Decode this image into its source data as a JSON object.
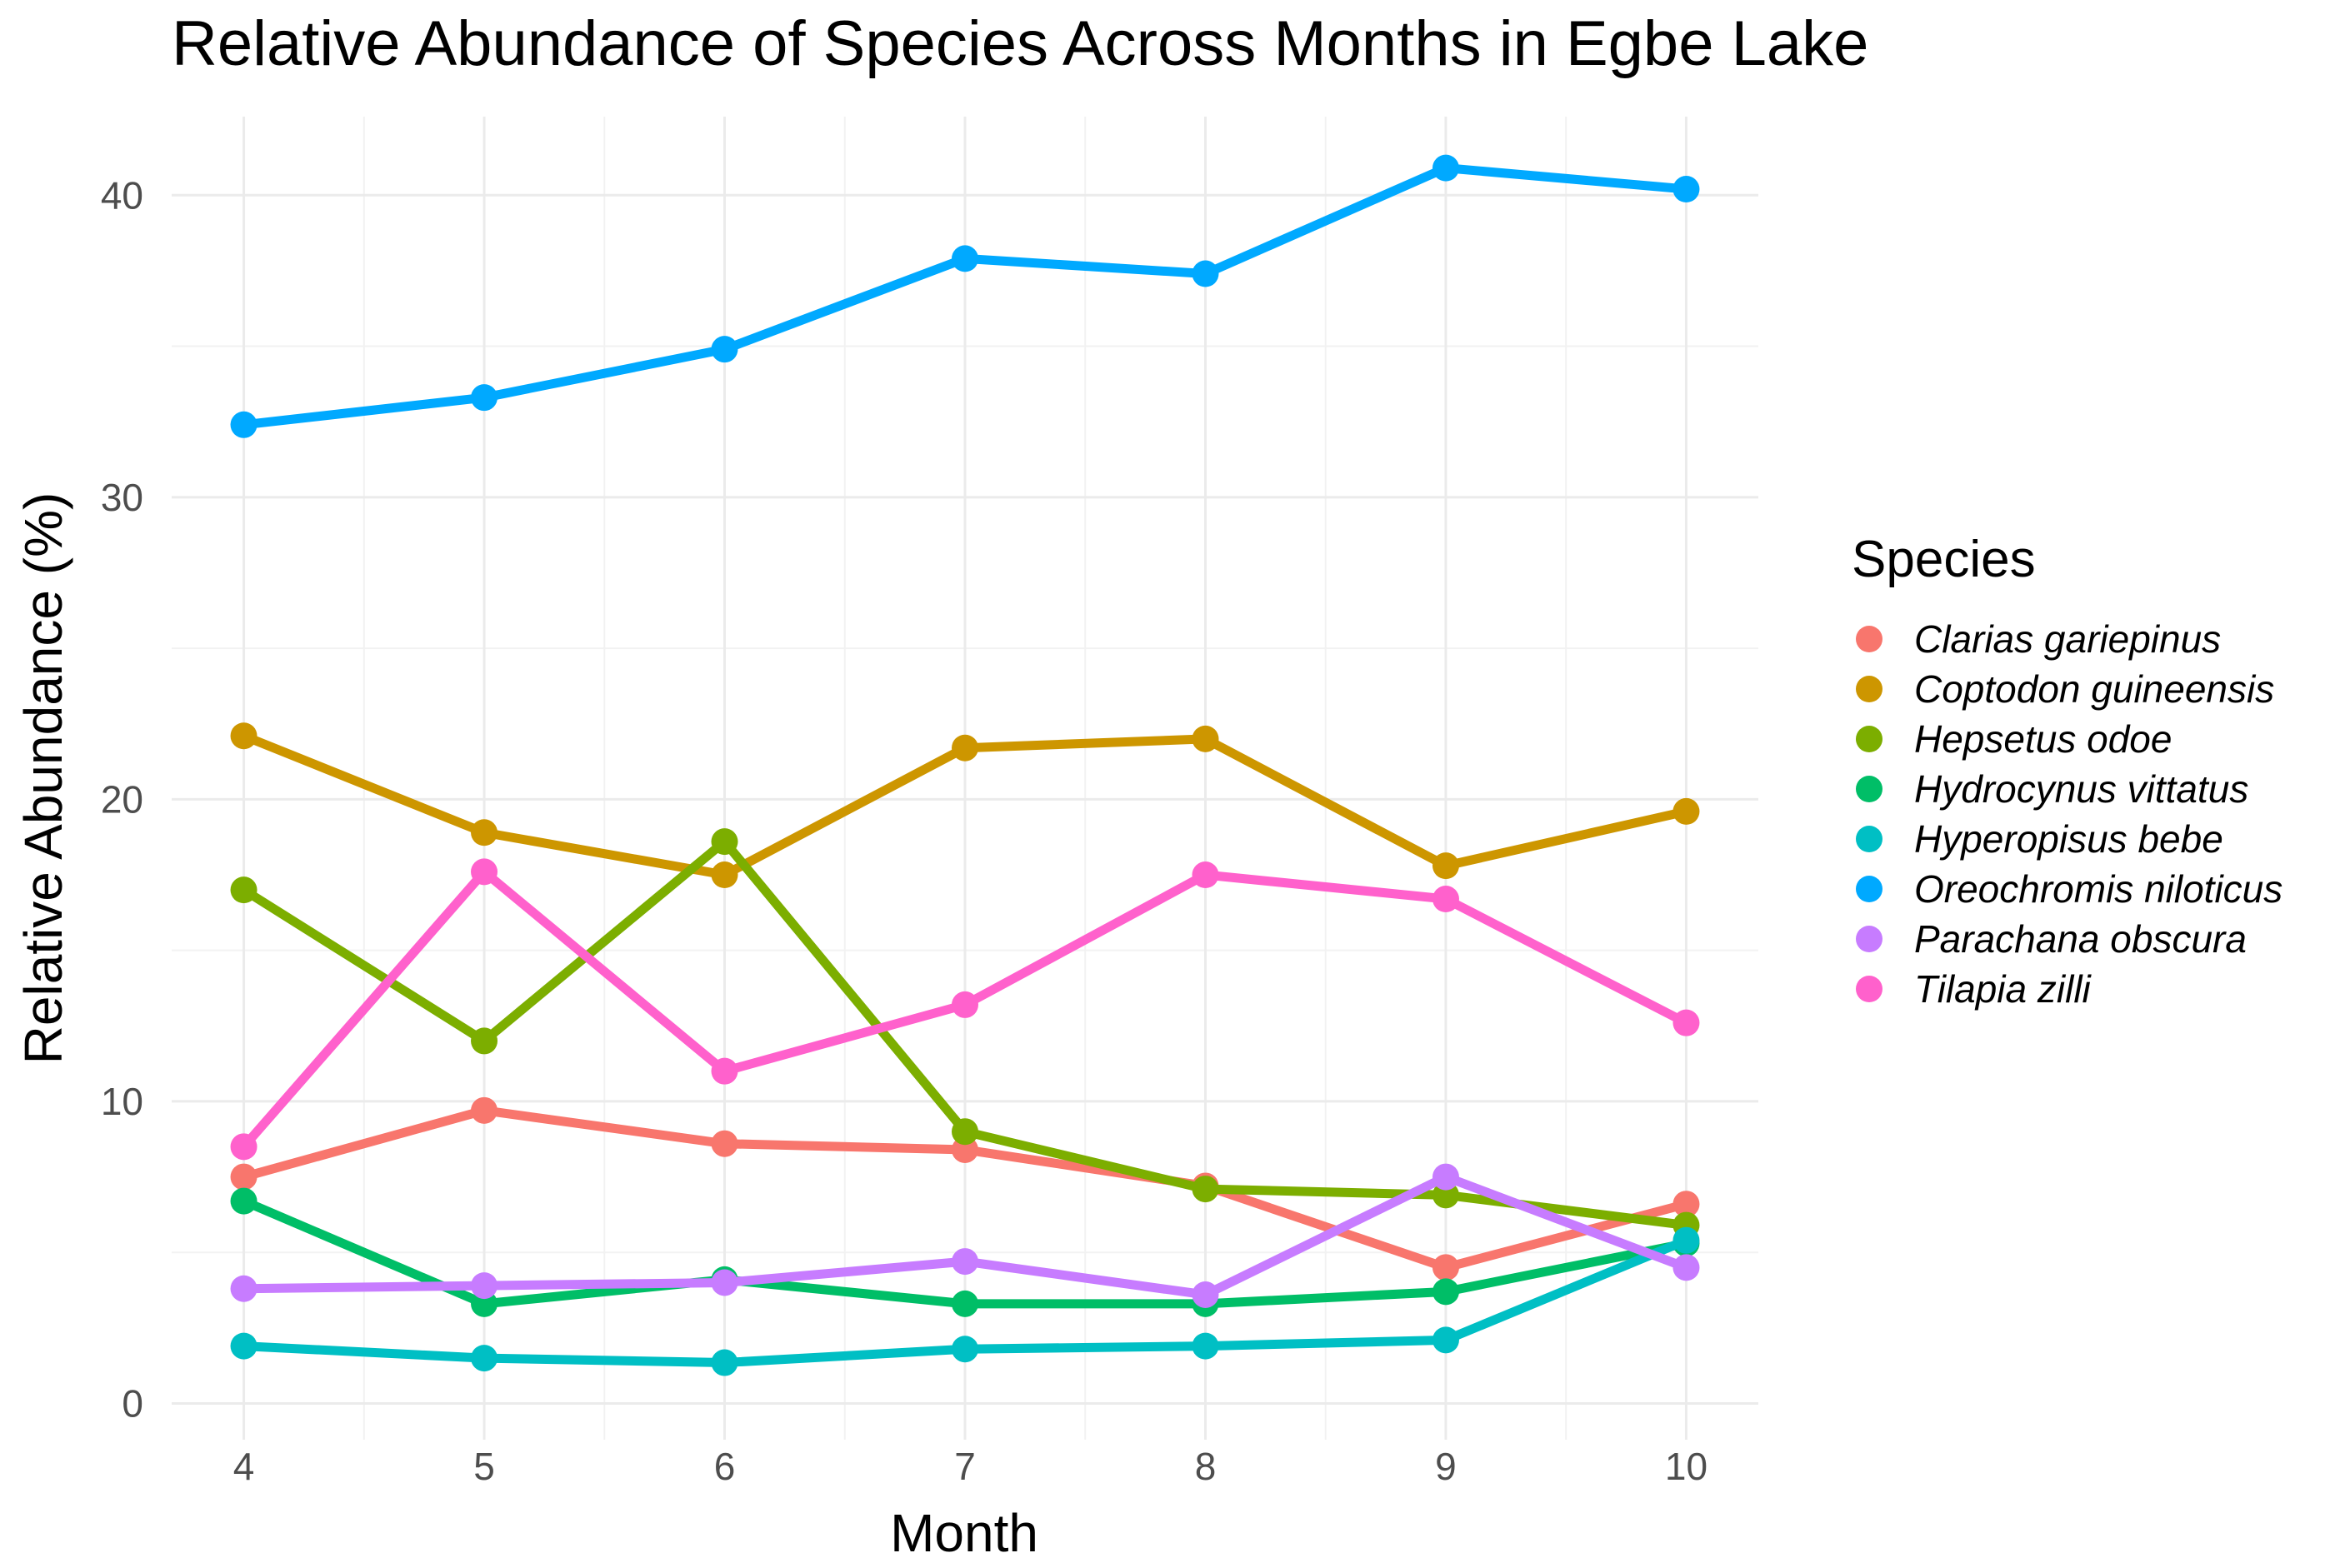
{
  "chart_data": {
    "type": "line",
    "title": "Relative Abundance of Species Across Months in Egbe Lake",
    "xlabel": "Month",
    "ylabel": "Relative Abundance (%)",
    "x": [
      4,
      5,
      6,
      7,
      8,
      9,
      10
    ],
    "xlim": [
      3.7,
      10.3
    ],
    "ylim": [
      -1.2,
      42.6
    ],
    "y_ticks": [
      0,
      10,
      20,
      30,
      40
    ],
    "x_ticks": [
      4,
      5,
      6,
      7,
      8,
      9,
      10
    ],
    "grid": true,
    "legend": {
      "title": "Species",
      "position": "right"
    },
    "series": [
      {
        "name": "Clarias gariepinus",
        "color": "#F8766D",
        "values": [
          7.5,
          9.7,
          8.6,
          8.4,
          7.2,
          4.5,
          6.6
        ]
      },
      {
        "name": "Coptodon guineensis",
        "color": "#CD9600",
        "values": [
          22.1,
          18.9,
          17.5,
          21.7,
          22.0,
          17.8,
          19.6
        ]
      },
      {
        "name": "Hepsetus odoe",
        "color": "#7CAE00",
        "values": [
          17.0,
          12.0,
          18.6,
          9.0,
          7.1,
          6.9,
          5.9
        ]
      },
      {
        "name": "Hydrocynus vittatus",
        "color": "#00BE67",
        "values": [
          6.7,
          3.3,
          4.1,
          3.3,
          3.3,
          3.7,
          5.3
        ]
      },
      {
        "name": "Hyperopisus bebe",
        "color": "#00BFC4",
        "values": [
          1.9,
          1.5,
          1.35,
          1.8,
          1.9,
          2.1,
          5.4
        ]
      },
      {
        "name": "Oreochromis niloticus",
        "color": "#00A9FF",
        "values": [
          32.4,
          33.3,
          34.9,
          37.9,
          37.4,
          40.9,
          40.2
        ]
      },
      {
        "name": "Parachana obscura",
        "color": "#C77CFF",
        "values": [
          3.8,
          3.9,
          4.0,
          4.7,
          3.6,
          7.5,
          4.5
        ]
      },
      {
        "name": "Tilapia zilli",
        "color": "#FF61CC",
        "values": [
          8.5,
          17.6,
          11.0,
          13.2,
          17.5,
          16.7,
          12.6
        ]
      }
    ]
  }
}
